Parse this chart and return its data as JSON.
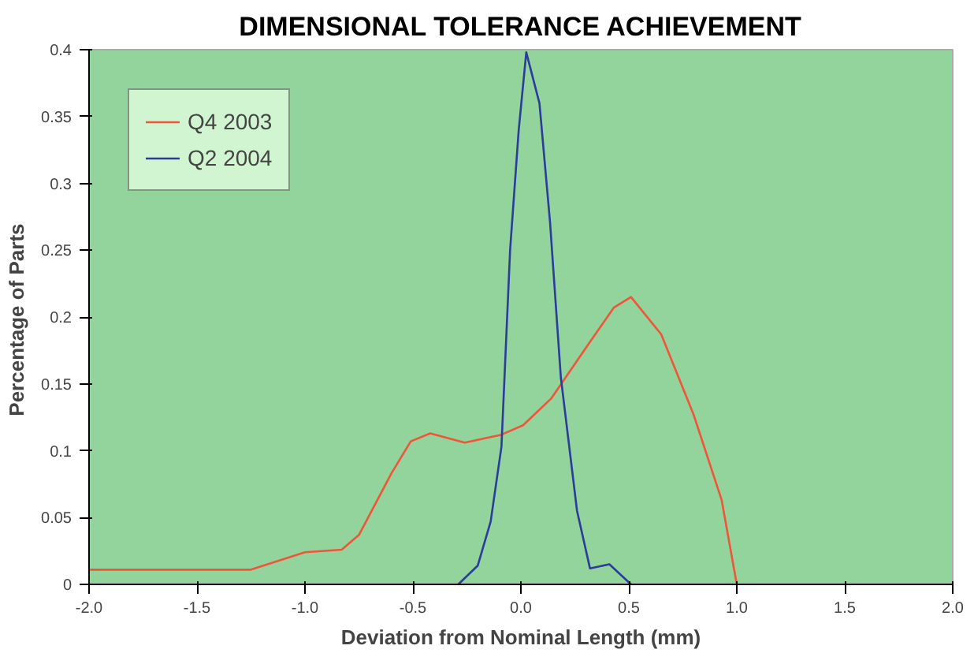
{
  "chart_data": {
    "type": "line",
    "title": "DIMENSIONAL TOLERANCE ACHIEVEMENT",
    "xlabel": "Deviation from Nominal Length (mm)",
    "ylabel": "Percentage of  Parts",
    "xlim": [
      -2,
      2
    ],
    "ylim": [
      0,
      0.4
    ],
    "xticks": [
      {
        "value": -2,
        "label": "-2.0"
      },
      {
        "value": -1.5,
        "label": "-1.5"
      },
      {
        "value": -1,
        "label": "-1.0"
      },
      {
        "value": -0.5,
        "label": "-0.5"
      },
      {
        "value": 0,
        "label": "0.0"
      },
      {
        "value": 0.5,
        "label": "0.5"
      },
      {
        "value": 1,
        "label": "1.0"
      },
      {
        "value": 1.5,
        "label": "1.5"
      },
      {
        "value": 2,
        "label": "2.0"
      }
    ],
    "yticks": [
      0,
      0.05,
      0.1,
      0.15,
      0.2,
      0.25,
      0.3,
      0.35,
      0.4
    ],
    "grid": false,
    "legend": "top left",
    "series": [
      {
        "name": "Q4 2003",
        "color": "#f0553a",
        "x": [
          -2,
          -1.25,
          -1.0,
          -0.83,
          -0.75,
          -0.6,
          -0.51,
          -0.42,
          -0.26,
          -0.09,
          0.01,
          0.14,
          0.31,
          0.43,
          0.51,
          0.65,
          0.8,
          0.93,
          1.0
        ],
        "values": [
          0.011,
          0.011,
          0.024,
          0.026,
          0.037,
          0.083,
          0.107,
          0.113,
          0.106,
          0.112,
          0.119,
          0.139,
          0.179,
          0.207,
          0.215,
          0.187,
          0.127,
          0.063,
          0
        ]
      },
      {
        "name": "Q2 2004",
        "color": "#2b3c9a",
        "x": [
          -0.29,
          -0.2,
          -0.14,
          -0.09,
          -0.05,
          -0.01,
          0.025,
          0.086,
          0.135,
          0.185,
          0.26,
          0.32,
          0.41,
          0.51
        ],
        "values": [
          0,
          0.014,
          0.047,
          0.103,
          0.25,
          0.34,
          0.398,
          0.36,
          0.271,
          0.155,
          0.055,
          0.012,
          0.015,
          0
        ]
      }
    ]
  }
}
